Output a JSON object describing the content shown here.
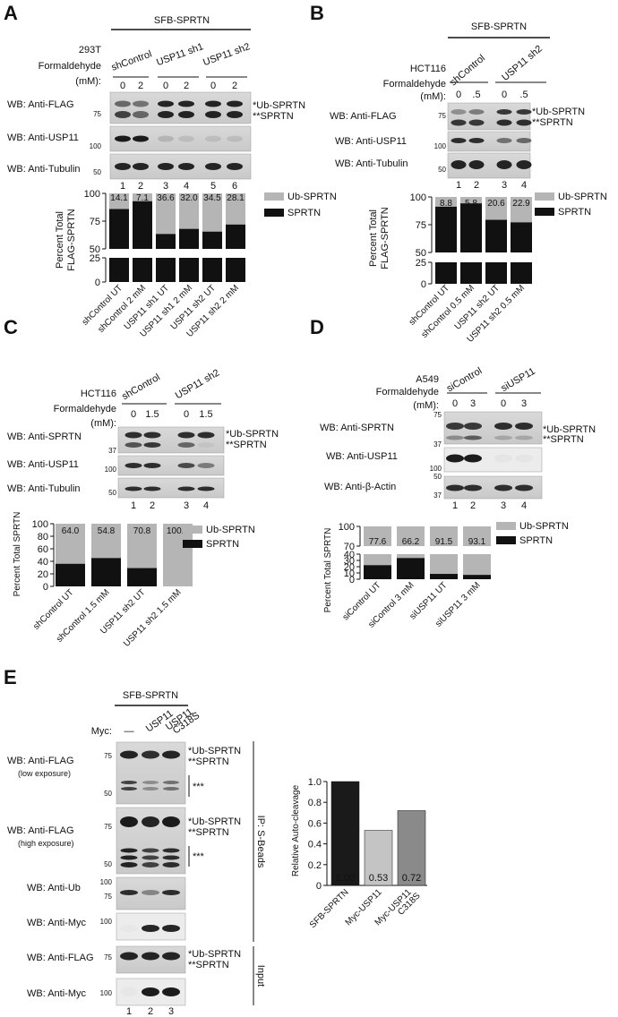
{
  "panels": {
    "a": {
      "letter": "A",
      "construct": "SFB-SPRTN",
      "cell_line": "293T",
      "treatment_label": "Formaldehyde",
      "unit_label": "(mM):",
      "groups": [
        "shControl",
        "USP11 sh1",
        "USP11 sh2"
      ],
      "doses": [
        "0",
        "2",
        "0",
        "2",
        "0",
        "2"
      ],
      "lanes": [
        "1",
        "2",
        "3",
        "4",
        "5",
        "6"
      ],
      "blots": [
        "WB: Anti-FLAG",
        "WB: Anti-USP11",
        "WB: Anti-Tubulin"
      ],
      "markers": [
        "75",
        "100",
        "50"
      ],
      "band_labels": [
        "*Ub-SPRTN",
        "**SPRTN"
      ],
      "legend": [
        "Ub-SPRTN",
        "SPRTN"
      ],
      "ylabel": "Percent Total FLAG-SPRTN",
      "yticks": [
        "100",
        "75",
        "50",
        "25",
        "0"
      ],
      "categories": [
        "shControl UT",
        "shControl 2 mM",
        "USP11 sh1 UT",
        "USP11 sh1 2 mM",
        "USP11 sh2 UT",
        "USP11 sh2 2 mM"
      ],
      "ub_values": [
        "14.1",
        "7.1",
        "36.6",
        "32.0",
        "34.5",
        "28.1"
      ]
    },
    "b": {
      "letter": "B",
      "construct": "SFB-SPRTN",
      "cell_line": "HCT116",
      "treatment_label": "Formaldehyde",
      "unit_label": "(mM):",
      "groups": [
        "shControl",
        "USP11 sh2"
      ],
      "doses": [
        "0",
        ".5",
        "0",
        ".5"
      ],
      "lanes": [
        "1",
        "2",
        "3",
        "4"
      ],
      "blots": [
        "WB: Anti-FLAG",
        "WB: Anti-USP11",
        "WB: Anti-Tubulin"
      ],
      "markers": [
        "75",
        "100",
        "50"
      ],
      "band_labels": [
        "*Ub-SPRTN",
        "**SPRTN"
      ],
      "legend": [
        "Ub-SPRTN",
        "SPRTN"
      ],
      "ylabel": "Percent Total FLAG-SPRTN",
      "yticks": [
        "100",
        "75",
        "50",
        "25",
        "0"
      ],
      "categories": [
        "shControl UT",
        "shControl 0.5 mM",
        "USP11 sh2 UT",
        "USP11 sh2 0.5 mM"
      ],
      "ub_values": [
        "8.8",
        "5.8",
        "20.6",
        "22.9"
      ]
    },
    "c": {
      "letter": "C",
      "cell_line": "HCT116",
      "treatment_label": "Formaldehyde",
      "unit_label": "(mM):",
      "groups": [
        "shControl",
        "USP11 sh2"
      ],
      "doses": [
        "0",
        "1.5",
        "0",
        "1.5"
      ],
      "lanes": [
        "1",
        "2",
        "3",
        "4"
      ],
      "blots": [
        "WB: Anti-SPRTN",
        "WB: Anti-USP11",
        "WB: Anti-Tubulin"
      ],
      "markers": [
        "37",
        "100",
        "50"
      ],
      "band_labels": [
        "*Ub-SPRTN",
        "**SPRTN"
      ],
      "legend": [
        "Ub-SPRTN",
        "SPRTN"
      ],
      "ylabel": "Percent Total SPRTN",
      "yticks": [
        "100",
        "80",
        "60",
        "40",
        "20",
        "0"
      ],
      "categories": [
        "shControl UT",
        "shControl 1.5 mM",
        "USP11 sh2 UT",
        "USP11 sh2 1.5 mM"
      ],
      "ub_values": [
        "64.0",
        "54.8",
        "70.8",
        "100.0"
      ]
    },
    "d": {
      "letter": "D",
      "cell_line": "A549",
      "treatment_label": "Formaldehyde",
      "unit_label": "(mM):",
      "groups": [
        "siControl",
        "siUSP11"
      ],
      "doses": [
        "0",
        "3",
        "0",
        "3"
      ],
      "lanes": [
        "1",
        "2",
        "3",
        "4"
      ],
      "blots": [
        "WB: Anti-SPRTN",
        "WB: Anti-USP11",
        "WB: Anti-β-Actin"
      ],
      "markers": [
        "75",
        "37",
        "100",
        "50",
        "37"
      ],
      "band_labels": [
        "*Ub-SPRTN",
        "**SPRTN"
      ],
      "legend": [
        "Ub-SPRTN",
        "SPRTN"
      ],
      "ylabel": "Percent Total SPRTN",
      "yticks": [
        "100",
        "70",
        "40",
        "30",
        "20",
        "10",
        "0"
      ],
      "categories": [
        "siControl UT",
        "siControl 3 mM",
        "siUSP11 UT",
        "siUSP11 3 mM"
      ],
      "ub_values": [
        "77.6",
        "66.2",
        "91.5",
        "93.1"
      ]
    },
    "e": {
      "letter": "E",
      "construct": "SFB-SPRTN",
      "myc_label": "Myc:",
      "myc_lanes": [
        "—",
        "USP11",
        "USP11 C318S"
      ],
      "blots": [
        "WB: Anti-FLAG",
        "(low exposure)",
        "WB: Anti-FLAG",
        "(high exposure)",
        "WB: Anti-Ub",
        "WB: Anti-Myc",
        "WB: Anti-FLAG",
        "WB: Anti-Myc"
      ],
      "markers": [
        "75",
        "50",
        "75",
        "50",
        "100",
        "75",
        "100",
        "75",
        "100"
      ],
      "band_labels": [
        "*Ub-SPRTN",
        "**SPRTN",
        "***"
      ],
      "ip_label": "IP: S-Beads",
      "input_label": "Input",
      "lanes": [
        "1",
        "2",
        "3"
      ],
      "ylabel": "Relative Auto-cleavage",
      "yticks": [
        "1.0",
        "0.8",
        "0.6",
        "0.4",
        "0.2",
        "0"
      ],
      "categories": [
        "SFB-SPRTN",
        "Myc-USP11",
        "Myc-USP11 C318S"
      ]
    }
  },
  "chart_data": [
    {
      "type": "bar",
      "title": "",
      "xlabel": "",
      "ylabel": "Percent Total FLAG-SPRTN",
      "stacked": true,
      "broken_axis": true,
      "categories": [
        "shControl UT",
        "shControl 2 mM",
        "USP11 sh1 UT",
        "USP11 sh1 2 mM",
        "USP11 sh2 UT",
        "USP11 sh2 2 mM"
      ],
      "series": [
        {
          "name": "SPRTN",
          "values": [
            85.9,
            92.9,
            63.4,
            68.0,
            65.5,
            71.9
          ]
        },
        {
          "name": "Ub-SPRTN",
          "values": [
            14.1,
            7.1,
            36.6,
            32.0,
            34.5,
            28.1
          ]
        }
      ],
      "ylim": [
        0,
        100
      ],
      "legend": "right",
      "colors": {
        "SPRTN": "#111111",
        "Ub-SPRTN": "#b5b5b5"
      }
    },
    {
      "type": "bar",
      "title": "",
      "xlabel": "",
      "ylabel": "Percent Total FLAG-SPRTN",
      "stacked": true,
      "broken_axis": true,
      "categories": [
        "shControl UT",
        "shControl 0.5 mM",
        "USP11 sh2 UT",
        "USP11 sh2 0.5 mM"
      ],
      "series": [
        {
          "name": "SPRTN",
          "values": [
            91.2,
            94.2,
            79.4,
            77.1
          ]
        },
        {
          "name": "Ub-SPRTN",
          "values": [
            8.8,
            5.8,
            20.6,
            22.9
          ]
        }
      ],
      "ylim": [
        0,
        100
      ],
      "legend": "right",
      "colors": {
        "SPRTN": "#111111",
        "Ub-SPRTN": "#b5b5b5"
      }
    },
    {
      "type": "bar",
      "title": "",
      "xlabel": "",
      "ylabel": "Percent Total SPRTN",
      "stacked": true,
      "categories": [
        "shControl UT",
        "shControl 1.5 mM",
        "USP11 sh2 UT",
        "USP11 sh2 1.5 mM"
      ],
      "series": [
        {
          "name": "SPRTN",
          "values": [
            36.0,
            45.2,
            29.2,
            0.0
          ]
        },
        {
          "name": "Ub-SPRTN",
          "values": [
            64.0,
            54.8,
            70.8,
            100.0
          ]
        }
      ],
      "ylim": [
        0,
        100
      ],
      "legend": "right",
      "colors": {
        "SPRTN": "#111111",
        "Ub-SPRTN": "#b5b5b5"
      }
    },
    {
      "type": "bar",
      "title": "",
      "xlabel": "",
      "ylabel": "Percent Total SPRTN",
      "stacked": true,
      "broken_axis": true,
      "categories": [
        "siControl UT",
        "siControl 3 mM",
        "siUSP11 UT",
        "siUSP11 3 mM"
      ],
      "series": [
        {
          "name": "SPRTN",
          "values": [
            22.4,
            33.8,
            8.5,
            6.9
          ]
        },
        {
          "name": "Ub-SPRTN",
          "values": [
            77.6,
            66.2,
            91.5,
            93.1
          ]
        }
      ],
      "ylim": [
        0,
        100
      ],
      "legend": "right",
      "colors": {
        "SPRTN": "#111111",
        "Ub-SPRTN": "#b5b5b5"
      }
    },
    {
      "type": "bar",
      "title": "",
      "xlabel": "",
      "ylabel": "Relative Auto-cleavage",
      "categories": [
        "SFB-SPRTN",
        "Myc-USP11",
        "Myc-USP11 C318S"
      ],
      "values": [
        1.0,
        0.53,
        0.72
      ],
      "data_labels": [
        "1.00",
        "0.53",
        "0.72"
      ],
      "ylim": [
        0,
        1.0
      ],
      "colors": [
        "#1a1a1a",
        "#c4c4c4",
        "#8a8a8a"
      ]
    }
  ]
}
